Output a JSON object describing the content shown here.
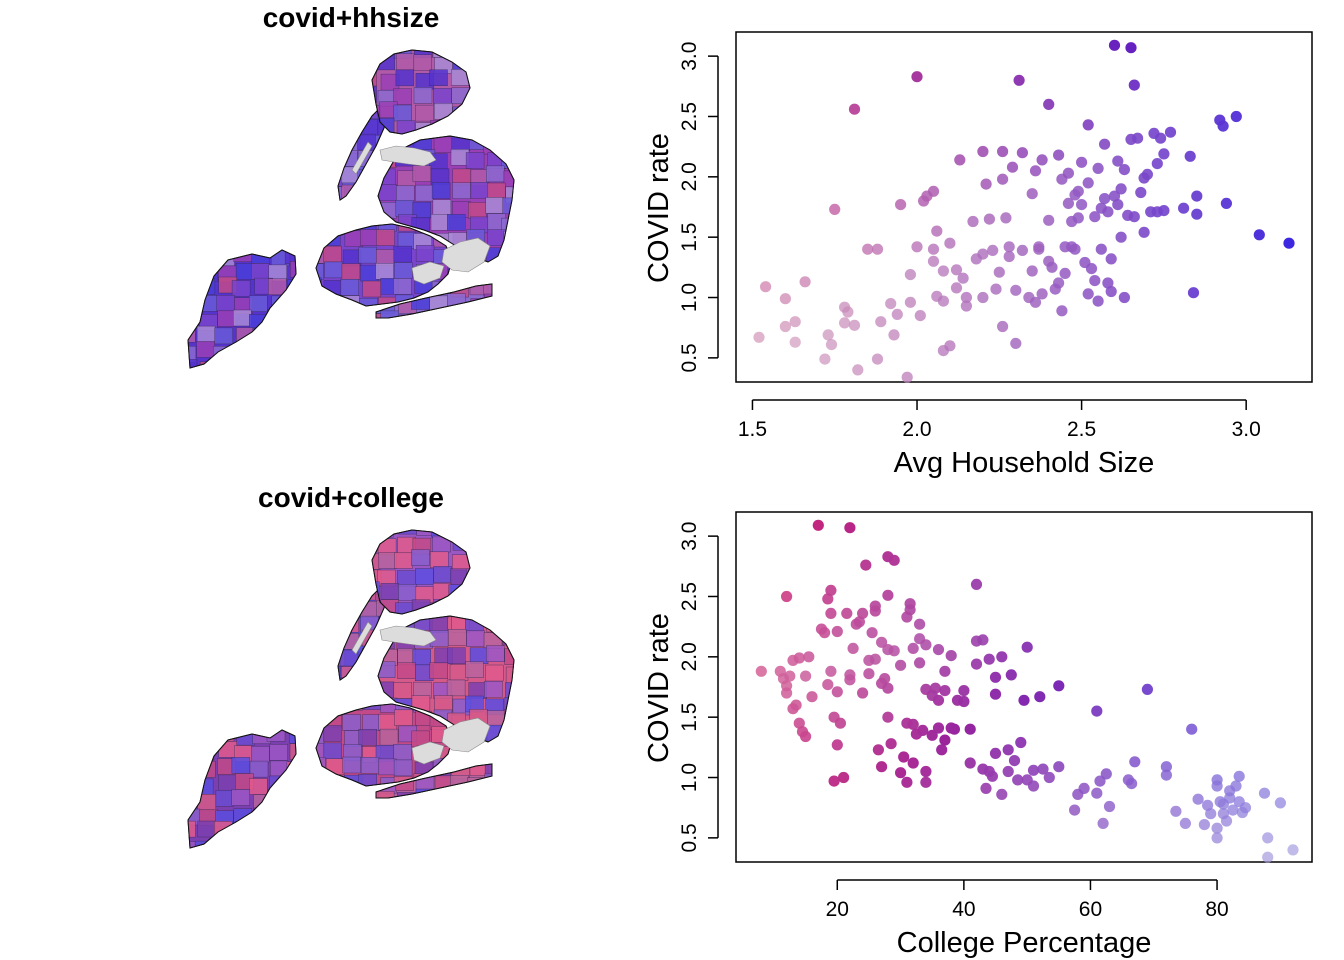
{
  "maps": [
    {
      "title": "covid+hhsize",
      "palette": [
        "#5533cc",
        "#7a44cc",
        "#9a3fb5",
        "#6a5ad8",
        "#b05aa8",
        "#8c6ad0",
        "#4b3ed8",
        "#c24a8a",
        "#a98bd6"
      ]
    },
    {
      "title": "covid+college",
      "palette": [
        "#7b3fb0",
        "#c34a88",
        "#d55a8a",
        "#5c4ee0",
        "#9b57c4",
        "#b8649c",
        "#6b4bd0",
        "#e05a8c",
        "#8a5fcc"
      ]
    }
  ],
  "chart_data": [
    {
      "type": "scatter",
      "xlabel": "Avg Household Size",
      "ylabel": "COVID rate",
      "xlim": [
        1.45,
        3.2
      ],
      "ylim": [
        0.3,
        3.2
      ],
      "xticks": [
        1.5,
        2.0,
        2.5,
        3.0
      ],
      "xtick_labels": [
        "1.5",
        "2.0",
        "2.5",
        "3.0"
      ],
      "yticks": [
        0.5,
        1.0,
        1.5,
        2.0,
        2.5,
        3.0
      ],
      "ytick_labels": [
        "0.5",
        "1.0",
        "1.5",
        "2.0",
        "2.5",
        "3.0"
      ],
      "points": [
        [
          1.52,
          0.67
        ],
        [
          1.54,
          1.09
        ],
        [
          1.6,
          0.99
        ],
        [
          1.6,
          0.76
        ],
        [
          1.63,
          0.8
        ],
        [
          1.63,
          0.63
        ],
        [
          1.66,
          1.13
        ],
        [
          1.72,
          0.49
        ],
        [
          1.73,
          0.69
        ],
        [
          1.74,
          0.61
        ],
        [
          1.75,
          1.73
        ],
        [
          1.78,
          0.92
        ],
        [
          1.78,
          0.79
        ],
        [
          1.79,
          0.88
        ],
        [
          1.81,
          2.56
        ],
        [
          1.81,
          0.77
        ],
        [
          1.82,
          0.4
        ],
        [
          1.85,
          1.4
        ],
        [
          1.88,
          1.4
        ],
        [
          1.88,
          0.49
        ],
        [
          1.89,
          0.8
        ],
        [
          1.92,
          0.95
        ],
        [
          1.93,
          0.69
        ],
        [
          1.94,
          0.86
        ],
        [
          1.95,
          1.77
        ],
        [
          1.97,
          0.34
        ],
        [
          1.98,
          0.96
        ],
        [
          1.98,
          1.19
        ],
        [
          2.0,
          2.83
        ],
        [
          2.0,
          1.42
        ],
        [
          2.01,
          0.85
        ],
        [
          2.02,
          1.8
        ],
        [
          2.03,
          1.84
        ],
        [
          2.05,
          1.88
        ],
        [
          2.05,
          1.4
        ],
        [
          2.05,
          1.3
        ],
        [
          2.06,
          1.01
        ],
        [
          2.06,
          1.55
        ],
        [
          2.08,
          1.22
        ],
        [
          2.08,
          0.97
        ],
        [
          2.08,
          0.56
        ],
        [
          2.1,
          0.6
        ],
        [
          2.1,
          1.45
        ],
        [
          2.12,
          1.23
        ],
        [
          2.12,
          1.08
        ],
        [
          2.13,
          2.14
        ],
        [
          2.14,
          1.16
        ],
        [
          2.15,
          1.0
        ],
        [
          2.15,
          0.93
        ],
        [
          2.17,
          1.63
        ],
        [
          2.18,
          1.32
        ],
        [
          2.2,
          1.36
        ],
        [
          2.2,
          1.0
        ],
        [
          2.2,
          2.21
        ],
        [
          2.21,
          1.94
        ],
        [
          2.22,
          1.65
        ],
        [
          2.23,
          1.39
        ],
        [
          2.24,
          1.07
        ],
        [
          2.25,
          1.21
        ],
        [
          2.26,
          0.76
        ],
        [
          2.26,
          2.21
        ],
        [
          2.26,
          1.98
        ],
        [
          2.27,
          1.66
        ],
        [
          2.28,
          1.42
        ],
        [
          2.28,
          1.34
        ],
        [
          2.29,
          2.08
        ],
        [
          2.3,
          1.06
        ],
        [
          2.3,
          0.62
        ],
        [
          2.31,
          2.8
        ],
        [
          2.32,
          2.2
        ],
        [
          2.32,
          1.39
        ],
        [
          2.34,
          1.0
        ],
        [
          2.35,
          1.86
        ],
        [
          2.35,
          1.22
        ],
        [
          2.36,
          2.05
        ],
        [
          2.36,
          0.96
        ],
        [
          2.37,
          1.42
        ],
        [
          2.37,
          1.4
        ],
        [
          2.38,
          2.14
        ],
        [
          2.38,
          1.03
        ],
        [
          2.4,
          2.6
        ],
        [
          2.4,
          1.64
        ],
        [
          2.4,
          1.3
        ],
        [
          2.41,
          1.25
        ],
        [
          2.42,
          1.07
        ],
        [
          2.43,
          2.18
        ],
        [
          2.43,
          1.12
        ],
        [
          2.44,
          1.98
        ],
        [
          2.44,
          0.89
        ],
        [
          2.45,
          1.42
        ],
        [
          2.45,
          1.2
        ],
        [
          2.46,
          2.03
        ],
        [
          2.46,
          1.78
        ],
        [
          2.47,
          1.63
        ],
        [
          2.47,
          1.42
        ],
        [
          2.48,
          1.85
        ],
        [
          2.48,
          1.4
        ],
        [
          2.49,
          1.66
        ],
        [
          2.49,
          1.88
        ],
        [
          2.5,
          2.12
        ],
        [
          2.5,
          1.77
        ],
        [
          2.51,
          1.29
        ],
        [
          2.52,
          2.43
        ],
        [
          2.52,
          1.95
        ],
        [
          2.52,
          1.03
        ],
        [
          2.53,
          1.24
        ],
        [
          2.54,
          1.67
        ],
        [
          2.54,
          1.14
        ],
        [
          2.55,
          2.07
        ],
        [
          2.55,
          0.97
        ],
        [
          2.56,
          1.74
        ],
        [
          2.56,
          1.4
        ],
        [
          2.57,
          2.27
        ],
        [
          2.57,
          1.82
        ],
        [
          2.58,
          1.71
        ],
        [
          2.58,
          1.12
        ],
        [
          2.59,
          1.32
        ],
        [
          2.59,
          1.05
        ],
        [
          2.6,
          3.09
        ],
        [
          2.6,
          1.84
        ],
        [
          2.61,
          2.13
        ],
        [
          2.61,
          1.77
        ],
        [
          2.62,
          1.9
        ],
        [
          2.62,
          1.5
        ],
        [
          2.63,
          2.06
        ],
        [
          2.63,
          1.0
        ],
        [
          2.64,
          1.68
        ],
        [
          2.65,
          3.07
        ],
        [
          2.65,
          2.31
        ],
        [
          2.66,
          2.76
        ],
        [
          2.66,
          1.67
        ],
        [
          2.67,
          2.32
        ],
        [
          2.68,
          1.87
        ],
        [
          2.69,
          1.54
        ],
        [
          2.69,
          1.99
        ],
        [
          2.7,
          2.02
        ],
        [
          2.71,
          1.71
        ],
        [
          2.72,
          2.36
        ],
        [
          2.73,
          2.11
        ],
        [
          2.73,
          1.71
        ],
        [
          2.74,
          2.32
        ],
        [
          2.75,
          2.19
        ],
        [
          2.75,
          1.72
        ],
        [
          2.77,
          2.37
        ],
        [
          2.81,
          1.74
        ],
        [
          2.83,
          2.17
        ],
        [
          2.84,
          1.04
        ],
        [
          2.85,
          1.84
        ],
        [
          2.85,
          1.69
        ],
        [
          2.92,
          2.47
        ],
        [
          2.93,
          2.42
        ],
        [
          2.94,
          1.78
        ],
        [
          2.97,
          2.5
        ],
        [
          3.04,
          1.52
        ],
        [
          3.13,
          1.45
        ]
      ]
    },
    {
      "type": "scatter",
      "xlabel": "College Percentage",
      "ylabel": "COVID rate",
      "xlim": [
        4,
        95
      ],
      "ylim": [
        0.3,
        3.2
      ],
      "xticks": [
        20,
        40,
        60,
        80
      ],
      "xtick_labels": [
        "20",
        "40",
        "60",
        "80"
      ],
      "yticks": [
        0.5,
        1.0,
        1.5,
        2.0,
        2.5,
        3.0
      ],
      "ytick_labels": [
        "0.5",
        "1.0",
        "1.5",
        "2.0",
        "2.5",
        "3.0"
      ],
      "points": [
        [
          8,
          1.88
        ],
        [
          11,
          1.88
        ],
        [
          11.5,
          1.82
        ],
        [
          12,
          1.76
        ],
        [
          12,
          2.5
        ],
        [
          12,
          1.7
        ],
        [
          12.5,
          1.84
        ],
        [
          13,
          1.97
        ],
        [
          13,
          1.57
        ],
        [
          13.5,
          1.6
        ],
        [
          14,
          1.99
        ],
        [
          14,
          1.45
        ],
        [
          14.5,
          1.38
        ],
        [
          15,
          1.34
        ],
        [
          15,
          1.84
        ],
        [
          15.5,
          2.0
        ],
        [
          16,
          1.67
        ],
        [
          17,
          3.09
        ],
        [
          17.5,
          2.23
        ],
        [
          18,
          2.2
        ],
        [
          18.5,
          1.77
        ],
        [
          18.5,
          2.48
        ],
        [
          19,
          2.55
        ],
        [
          19,
          2.36
        ],
        [
          19,
          1.88
        ],
        [
          19.5,
          1.5
        ],
        [
          19.5,
          0.97
        ],
        [
          20,
          2.21
        ],
        [
          20,
          1.71
        ],
        [
          20,
          1.27
        ],
        [
          20.5,
          1.45
        ],
        [
          21,
          1.0
        ],
        [
          21.5,
          2.36
        ],
        [
          22,
          1.81
        ],
        [
          22,
          1.85
        ],
        [
          22,
          3.07
        ],
        [
          22.5,
          2.07
        ],
        [
          23,
          2.27
        ],
        [
          23.5,
          2.29
        ],
        [
          24,
          2.36
        ],
        [
          24,
          1.7
        ],
        [
          24.5,
          2.76
        ],
        [
          25,
          1.97
        ],
        [
          25,
          1.86
        ],
        [
          25.5,
          2.2
        ],
        [
          26,
          2.42
        ],
        [
          26,
          2.38
        ],
        [
          26,
          1.98
        ],
        [
          26.5,
          1.23
        ],
        [
          27,
          2.12
        ],
        [
          27,
          1.78
        ],
        [
          27,
          1.09
        ],
        [
          27.5,
          1.82
        ],
        [
          28,
          2.51
        ],
        [
          28,
          2.83
        ],
        [
          28,
          2.06
        ],
        [
          28,
          1.74
        ],
        [
          28,
          1.5
        ],
        [
          28.5,
          1.28
        ],
        [
          29,
          2.8
        ],
        [
          29,
          2.05
        ],
        [
          30,
          1.93
        ],
        [
          30,
          1.04
        ],
        [
          30.5,
          1.17
        ],
        [
          31,
          2.33
        ],
        [
          31,
          1.45
        ],
        [
          31,
          0.96
        ],
        [
          31.5,
          2.44
        ],
        [
          31.5,
          2.39
        ],
        [
          32,
          2.07
        ],
        [
          32,
          1.44
        ],
        [
          32,
          1.12
        ],
        [
          32.5,
          1.36
        ],
        [
          33,
          2.15
        ],
        [
          33,
          1.95
        ],
        [
          33,
          2.27
        ],
        [
          33.5,
          1.39
        ],
        [
          34,
          2.1
        ],
        [
          34,
          1.73
        ],
        [
          34,
          1.05
        ],
        [
          34,
          0.96
        ],
        [
          35,
          1.68
        ],
        [
          35,
          1.35
        ],
        [
          35.5,
          1.74
        ],
        [
          36,
          2.06
        ],
        [
          36,
          1.64
        ],
        [
          36,
          1.41
        ],
        [
          36.5,
          1.23
        ],
        [
          37,
          1.88
        ],
        [
          37,
          1.72
        ],
        [
          37,
          1.31
        ],
        [
          38,
          1.41
        ],
        [
          38,
          2.01
        ],
        [
          38.5,
          1.4
        ],
        [
          39,
          1.64
        ],
        [
          40,
          1.72
        ],
        [
          40,
          1.63
        ],
        [
          41,
          1.12
        ],
        [
          41,
          1.4
        ],
        [
          42,
          2.6
        ],
        [
          42,
          1.94
        ],
        [
          42,
          2.13
        ],
        [
          43,
          2.14
        ],
        [
          43,
          1.07
        ],
        [
          43.5,
          0.91
        ],
        [
          44,
          1.05
        ],
        [
          44,
          1.98
        ],
        [
          44.5,
          1.01
        ],
        [
          45,
          1.83
        ],
        [
          45,
          1.69
        ],
        [
          45,
          1.2
        ],
        [
          46,
          2.0
        ],
        [
          46,
          0.86
        ],
        [
          47,
          1.23
        ],
        [
          47,
          1.05
        ],
        [
          47.5,
          1.85
        ],
        [
          48,
          1.14
        ],
        [
          48.5,
          0.98
        ],
        [
          49,
          1.29
        ],
        [
          49.5,
          1.64
        ],
        [
          50,
          2.08
        ],
        [
          50,
          0.98
        ],
        [
          51,
          1.06
        ],
        [
          51,
          0.93
        ],
        [
          52,
          1.67
        ],
        [
          52.5,
          1.07
        ],
        [
          53.5,
          1.0
        ],
        [
          55,
          1.09
        ],
        [
          55,
          1.76
        ],
        [
          57.5,
          0.73
        ],
        [
          58,
          0.86
        ],
        [
          59,
          0.91
        ],
        [
          61,
          1.55
        ],
        [
          61,
          0.87
        ],
        [
          61.5,
          0.97
        ],
        [
          62,
          0.62
        ],
        [
          62.5,
          1.03
        ],
        [
          63,
          0.76
        ],
        [
          66,
          0.98
        ],
        [
          66.5,
          0.95
        ],
        [
          67,
          1.13
        ],
        [
          69,
          1.73
        ],
        [
          72,
          1.09
        ],
        [
          72,
          1.02
        ],
        [
          73.5,
          0.72
        ],
        [
          75,
          0.62
        ],
        [
          76,
          1.4
        ],
        [
          77,
          0.82
        ],
        [
          78,
          0.61
        ],
        [
          78.5,
          0.77
        ],
        [
          79,
          0.7
        ],
        [
          80,
          0.58
        ],
        [
          80,
          0.98
        ],
        [
          80,
          0.93
        ],
        [
          80,
          0.5
        ],
        [
          80.5,
          0.8
        ],
        [
          81,
          0.7
        ],
        [
          81,
          0.78
        ],
        [
          81.5,
          0.64
        ],
        [
          82,
          0.89
        ],
        [
          82,
          0.83
        ],
        [
          82.5,
          0.73
        ],
        [
          83,
          0.93
        ],
        [
          83.5,
          0.8
        ],
        [
          83.5,
          1.01
        ],
        [
          84,
          0.71
        ],
        [
          84.5,
          0.75
        ],
        [
          87.5,
          0.87
        ],
        [
          88,
          0.34
        ],
        [
          88,
          0.5
        ],
        [
          90,
          0.79
        ],
        [
          92,
          0.4
        ]
      ]
    }
  ]
}
